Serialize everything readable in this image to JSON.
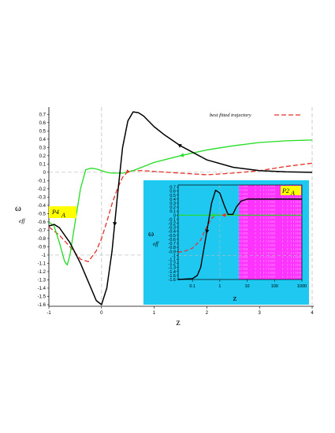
{
  "chart_data": [
    {
      "type": "line",
      "xlabel": "z",
      "ylabel": "ω",
      "ylabel_sub": "eff",
      "xlim": [
        -1,
        4
      ],
      "ylim": [
        -1.6,
        0.75
      ],
      "xticks": [
        -1,
        0,
        1,
        2,
        3,
        4
      ],
      "yticks": [
        0.7,
        0.6,
        0.5,
        0.4,
        0.3,
        0.2,
        0.1,
        0,
        -0.1,
        -0.2,
        -0.3,
        -0.4,
        -0.5,
        -0.6,
        -0.7,
        -0.8,
        -0.9,
        -1,
        -1.1,
        -1.2,
        -1.3,
        -1.4,
        -1.5,
        -1.6
      ],
      "xtick_labels": [
        "-1",
        "0",
        "1",
        "2",
        "3",
        "4"
      ],
      "ytick_labels": [
        "0.7",
        "0.6",
        "0.5",
        "0.4",
        "0.3",
        "0.2",
        "0.1",
        "0",
        "-0.1",
        "-0.2",
        "-0.3",
        "-0.4",
        "-0.5",
        "-0.6",
        "-0.7",
        "-0.8",
        "-0.9",
        "-1",
        "-1.1",
        "-1.2",
        "-1.3",
        "-1.4",
        "-1.5",
        "-1.6"
      ],
      "ref_lines": {
        "horizontal": [
          0,
          -1
        ],
        "vertical": [
          0,
          4
        ]
      },
      "legend": {
        "label": "best fitted trajectory",
        "position": "top-right"
      },
      "tag": {
        "main": "P4",
        "sub": "A",
        "color": "#ffff00"
      },
      "series": [
        {
          "name": "best fitted trajectory",
          "color": "#e8302a",
          "dashed": true,
          "x": [
            -1,
            -0.8,
            -0.6,
            -0.4,
            -0.25,
            -0.1,
            0,
            0.1,
            0.2,
            0.3,
            0.4,
            0.5,
            0.6,
            0.8,
            1,
            1.5,
            2,
            2.5,
            3,
            3.5,
            4
          ],
          "y": [
            -0.66,
            -0.76,
            -0.9,
            -1.05,
            -1.08,
            -0.95,
            -0.8,
            -0.6,
            -0.38,
            -0.2,
            -0.06,
            0.01,
            0.02,
            0.02,
            0.01,
            -0.01,
            -0.03,
            -0.01,
            0.02,
            0.07,
            0.11
          ]
        },
        {
          "color": "#22dd22",
          "dashed": false,
          "x": [
            -1,
            -0.9,
            -0.8,
            -0.7,
            -0.65,
            -0.6,
            -0.5,
            -0.4,
            -0.3,
            -0.2,
            -0.1,
            0,
            0.1,
            0.2,
            0.3,
            0.4,
            0.6,
            0.8,
            1,
            1.5,
            2,
            2.5,
            3,
            3.5,
            4
          ],
          "y": [
            -0.6,
            -0.65,
            -0.85,
            -1.08,
            -1.12,
            -1.0,
            -0.6,
            -0.2,
            0.03,
            0.05,
            0.04,
            0.02,
            0.0,
            -0.01,
            -0.01,
            -0.01,
            0.02,
            0.07,
            0.12,
            0.2,
            0.27,
            0.32,
            0.36,
            0.38,
            0.39
          ]
        },
        {
          "color": "#000000",
          "dashed": false,
          "x": [
            -1,
            -0.9,
            -0.8,
            -0.6,
            -0.4,
            -0.2,
            -0.1,
            0,
            0.1,
            0.2,
            0.3,
            0.4,
            0.5,
            0.6,
            0.7,
            0.8,
            1,
            1.2,
            1.5,
            2,
            2.5,
            3,
            3.5,
            4
          ],
          "y": [
            -0.65,
            -0.63,
            -0.67,
            -0.85,
            -1.1,
            -1.4,
            -1.55,
            -1.6,
            -1.4,
            -0.95,
            -0.3,
            0.3,
            0.62,
            0.73,
            0.72,
            0.68,
            0.55,
            0.45,
            0.32,
            0.15,
            0.06,
            0.02,
            0.005,
            0.0
          ]
        }
      ]
    },
    {
      "type": "line",
      "xlabel": "z",
      "ylabel": "ω",
      "ylabel_sub": "eff",
      "xscale": "log",
      "xlim": [
        0.03,
        1000
      ],
      "ylim": [
        -1.6,
        0.75
      ],
      "xtick_labels": [
        "0.1",
        "1",
        "10",
        "100",
        "1000"
      ],
      "xticks": [
        0.1,
        1,
        10,
        100,
        1000
      ],
      "yticks": [
        0.7,
        0.6,
        0.5,
        0.4,
        0.3,
        0.2,
        0.1,
        0,
        -0.1,
        -0.2,
        -0.3,
        -0.4,
        -0.5,
        -0.6,
        -0.7,
        -0.8,
        -0.9,
        -1,
        -1.1,
        -1.2,
        -1.3,
        -1.4,
        -1.5,
        -1.6
      ],
      "ytick_labels": [
        "0.7",
        "0.6",
        "0.5",
        "0.4",
        "0.3",
        "0.2",
        "0.1",
        "0",
        "-0.1",
        "-0.2",
        "-0.3",
        "-0.4",
        "-0.5",
        "-0.6",
        "-0.7",
        "-0.8",
        "-0.9",
        "-1",
        "-1.1",
        "-1.2",
        "-1.3",
        "-1.4",
        "-1.5",
        "-1.6"
      ],
      "background": "#1ec8f0",
      "band_color": "#ff33ff",
      "band_from": 5,
      "tag": {
        "main": "P2",
        "sub": "A",
        "color": "#ffff00"
      },
      "series": [
        {
          "color": "#e8302a",
          "dashed": true,
          "x": [
            0.03,
            0.05,
            0.1,
            0.2,
            0.3,
            0.5,
            0.7,
            1,
            2,
            4,
            10,
            100,
            1000
          ],
          "y": [
            -0.92,
            -0.9,
            -0.82,
            -0.62,
            -0.35,
            -0.08,
            0.0,
            0.0,
            0.0,
            0.0,
            0.0,
            0.0,
            0.0
          ]
        },
        {
          "color": "#22dd22",
          "dashed": false,
          "x": [
            0.03,
            0.1,
            0.5,
            1,
            2,
            4,
            10,
            100,
            1000
          ],
          "y": [
            0.0,
            0.0,
            0.0,
            0.0,
            0.0,
            0.0,
            0.0,
            0.0,
            0.0
          ]
        },
        {
          "color": "#000000",
          "dashed": false,
          "x": [
            0.03,
            0.1,
            0.15,
            0.2,
            0.3,
            0.5,
            0.7,
            1,
            1.5,
            2,
            3,
            4,
            6,
            10,
            100,
            1000
          ],
          "y": [
            -1.6,
            -1.58,
            -1.5,
            -1.3,
            -0.6,
            0.3,
            0.62,
            0.55,
            0.22,
            0.02,
            0.02,
            0.2,
            0.35,
            0.4,
            0.4,
            0.4
          ]
        }
      ]
    }
  ]
}
